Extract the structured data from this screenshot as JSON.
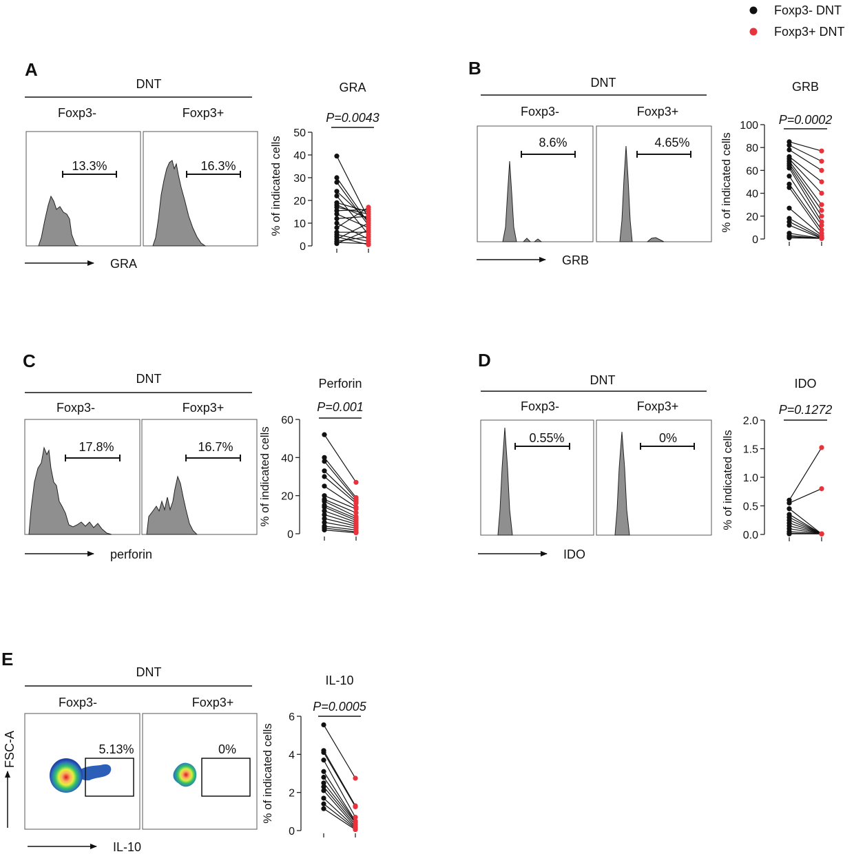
{
  "colors": {
    "neg": "#111111",
    "pos": "#e8323c",
    "hist_fill": "#8f8f8f",
    "axis": "#222222"
  },
  "legend": [
    {
      "label": "Foxp3- DNT",
      "color": "#111111"
    },
    {
      "label": "Foxp3+ DNT",
      "color": "#e8323c"
    }
  ],
  "panels": [
    {
      "letter": "A",
      "group": "DNT",
      "neg_label": "Foxp3-",
      "pos_label": "Foxp3+",
      "marker": "GRA",
      "neg_pct": "13.3%",
      "pos_pct": "16.3%",
      "plot_kind": "histogram"
    },
    {
      "letter": "B",
      "group": "DNT",
      "neg_label": "Foxp3-",
      "pos_label": "Foxp3+",
      "marker": "GRB",
      "neg_pct": "8.6%",
      "pos_pct": "4.65%",
      "plot_kind": "histogram"
    },
    {
      "letter": "C",
      "group": "DNT",
      "neg_label": "Foxp3-",
      "pos_label": "Foxp3+",
      "marker": "perforin",
      "neg_pct": "17.8%",
      "pos_pct": "16.7%",
      "plot_kind": "histogram"
    },
    {
      "letter": "D",
      "group": "DNT",
      "neg_label": "Foxp3-",
      "pos_label": "Foxp3+",
      "marker": "IDO",
      "neg_pct": "0.55%",
      "pos_pct": "0%",
      "plot_kind": "histogram"
    },
    {
      "letter": "E",
      "group": "DNT",
      "neg_label": "Foxp3-",
      "pos_label": "Foxp3+",
      "marker": "IL-10",
      "neg_pct": "5.13%",
      "pos_pct": "0%",
      "plot_kind": "density",
      "y_axis_label": "FSC-A"
    }
  ],
  "chart_data": [
    {
      "type": "scatter",
      "title": "GRA",
      "pvalue": "P=0.0043",
      "ylabel": "% of indicated cells",
      "ylim": [
        0,
        50
      ],
      "yticks": [
        0,
        10,
        20,
        30,
        40,
        50
      ],
      "ytick_labels": [
        "0",
        "10",
        "20",
        "30",
        "40",
        "50"
      ],
      "series": [
        {
          "name": "Foxp3- DNT",
          "values": [
            39.5,
            30,
            28,
            24,
            22,
            19,
            18,
            17,
            15.5,
            14,
            12,
            10,
            8,
            6,
            5,
            4,
            3,
            2,
            1.5,
            1
          ]
        },
        {
          "name": "Foxp3+ DNT",
          "values": [
            12,
            10,
            9,
            11,
            5,
            15,
            12,
            14,
            16,
            8,
            13,
            3,
            17,
            6,
            2,
            0.5,
            10,
            4,
            1,
            7
          ]
        }
      ]
    },
    {
      "type": "scatter",
      "title": "GRB",
      "pvalue": "P=0.0002",
      "ylabel": "% of indicated cells",
      "ylim": [
        0,
        100
      ],
      "yticks": [
        0,
        20,
        40,
        60,
        80,
        100
      ],
      "ytick_labels": [
        "0",
        "20",
        "40",
        "60",
        "80",
        "100"
      ],
      "series": [
        {
          "name": "Foxp3- DNT",
          "values": [
            85,
            82,
            78,
            72,
            70,
            68,
            66,
            64,
            62,
            55,
            48,
            45,
            27,
            18,
            15,
            12,
            5,
            3,
            2,
            1
          ]
        },
        {
          "name": "Foxp3+ DNT",
          "values": [
            77,
            68,
            60,
            50,
            40,
            30,
            25,
            20,
            15,
            12,
            8,
            5,
            3,
            2,
            1,
            0.5,
            0.5,
            0.5,
            0.5,
            0.5
          ]
        }
      ]
    },
    {
      "type": "scatter",
      "title": "Perforin",
      "pvalue": "P=0.001",
      "ylabel": "% of indicated cells",
      "ylim": [
        0,
        60
      ],
      "yticks": [
        0,
        20,
        40,
        60
      ],
      "ytick_labels": [
        "0",
        "20",
        "40",
        "60"
      ],
      "series": [
        {
          "name": "Foxp3- DNT",
          "values": [
            52,
            40,
            38,
            33,
            30,
            25,
            20,
            18,
            17,
            15,
            14,
            12,
            10,
            8,
            6,
            4,
            3,
            2
          ]
        },
        {
          "name": "Foxp3+ DNT",
          "values": [
            27,
            19,
            18,
            17,
            16,
            14,
            13,
            11,
            9,
            8,
            7,
            6,
            5,
            4,
            3,
            2,
            1,
            0.5
          ]
        }
      ]
    },
    {
      "type": "scatter",
      "title": "IDO",
      "pvalue": "P=0.1272",
      "ylabel": "% of indicated cells",
      "ylim": [
        0,
        2.0
      ],
      "yticks": [
        0,
        0.5,
        1.0,
        1.5,
        2.0
      ],
      "ytick_labels": [
        "0.0",
        "0.5",
        "1.0",
        "1.5",
        "2.0"
      ],
      "series": [
        {
          "name": "Foxp3- DNT",
          "values": [
            0.6,
            0.55,
            0.45,
            0.35,
            0.3,
            0.25,
            0.2,
            0.15,
            0.1,
            0.05,
            0.02,
            0.01
          ]
        },
        {
          "name": "Foxp3+ DNT",
          "values": [
            1.52,
            0.8,
            0.01,
            0.01,
            0.01,
            0.01,
            0.01,
            0.01,
            0.01,
            0.01,
            0.01,
            0.01
          ]
        }
      ]
    },
    {
      "type": "scatter",
      "title": "IL-10",
      "pvalue": "P=0.0005",
      "ylabel": "% of indicated cells",
      "ylim": [
        0,
        6
      ],
      "yticks": [
        0,
        2,
        4,
        6
      ],
      "ytick_labels": [
        "0",
        "2",
        "4",
        "6"
      ],
      "series": [
        {
          "name": "Foxp3- DNT",
          "values": [
            5.55,
            4.2,
            4.1,
            3.7,
            3.1,
            2.8,
            2.5,
            2.3,
            2.1,
            1.7,
            1.4,
            1.15
          ]
        },
        {
          "name": "Foxp3+ DNT",
          "values": [
            2.75,
            1.3,
            1.25,
            0.7,
            0.5,
            0.45,
            0.4,
            0.3,
            0.2,
            0.15,
            0.1,
            0.05
          ]
        }
      ]
    }
  ]
}
